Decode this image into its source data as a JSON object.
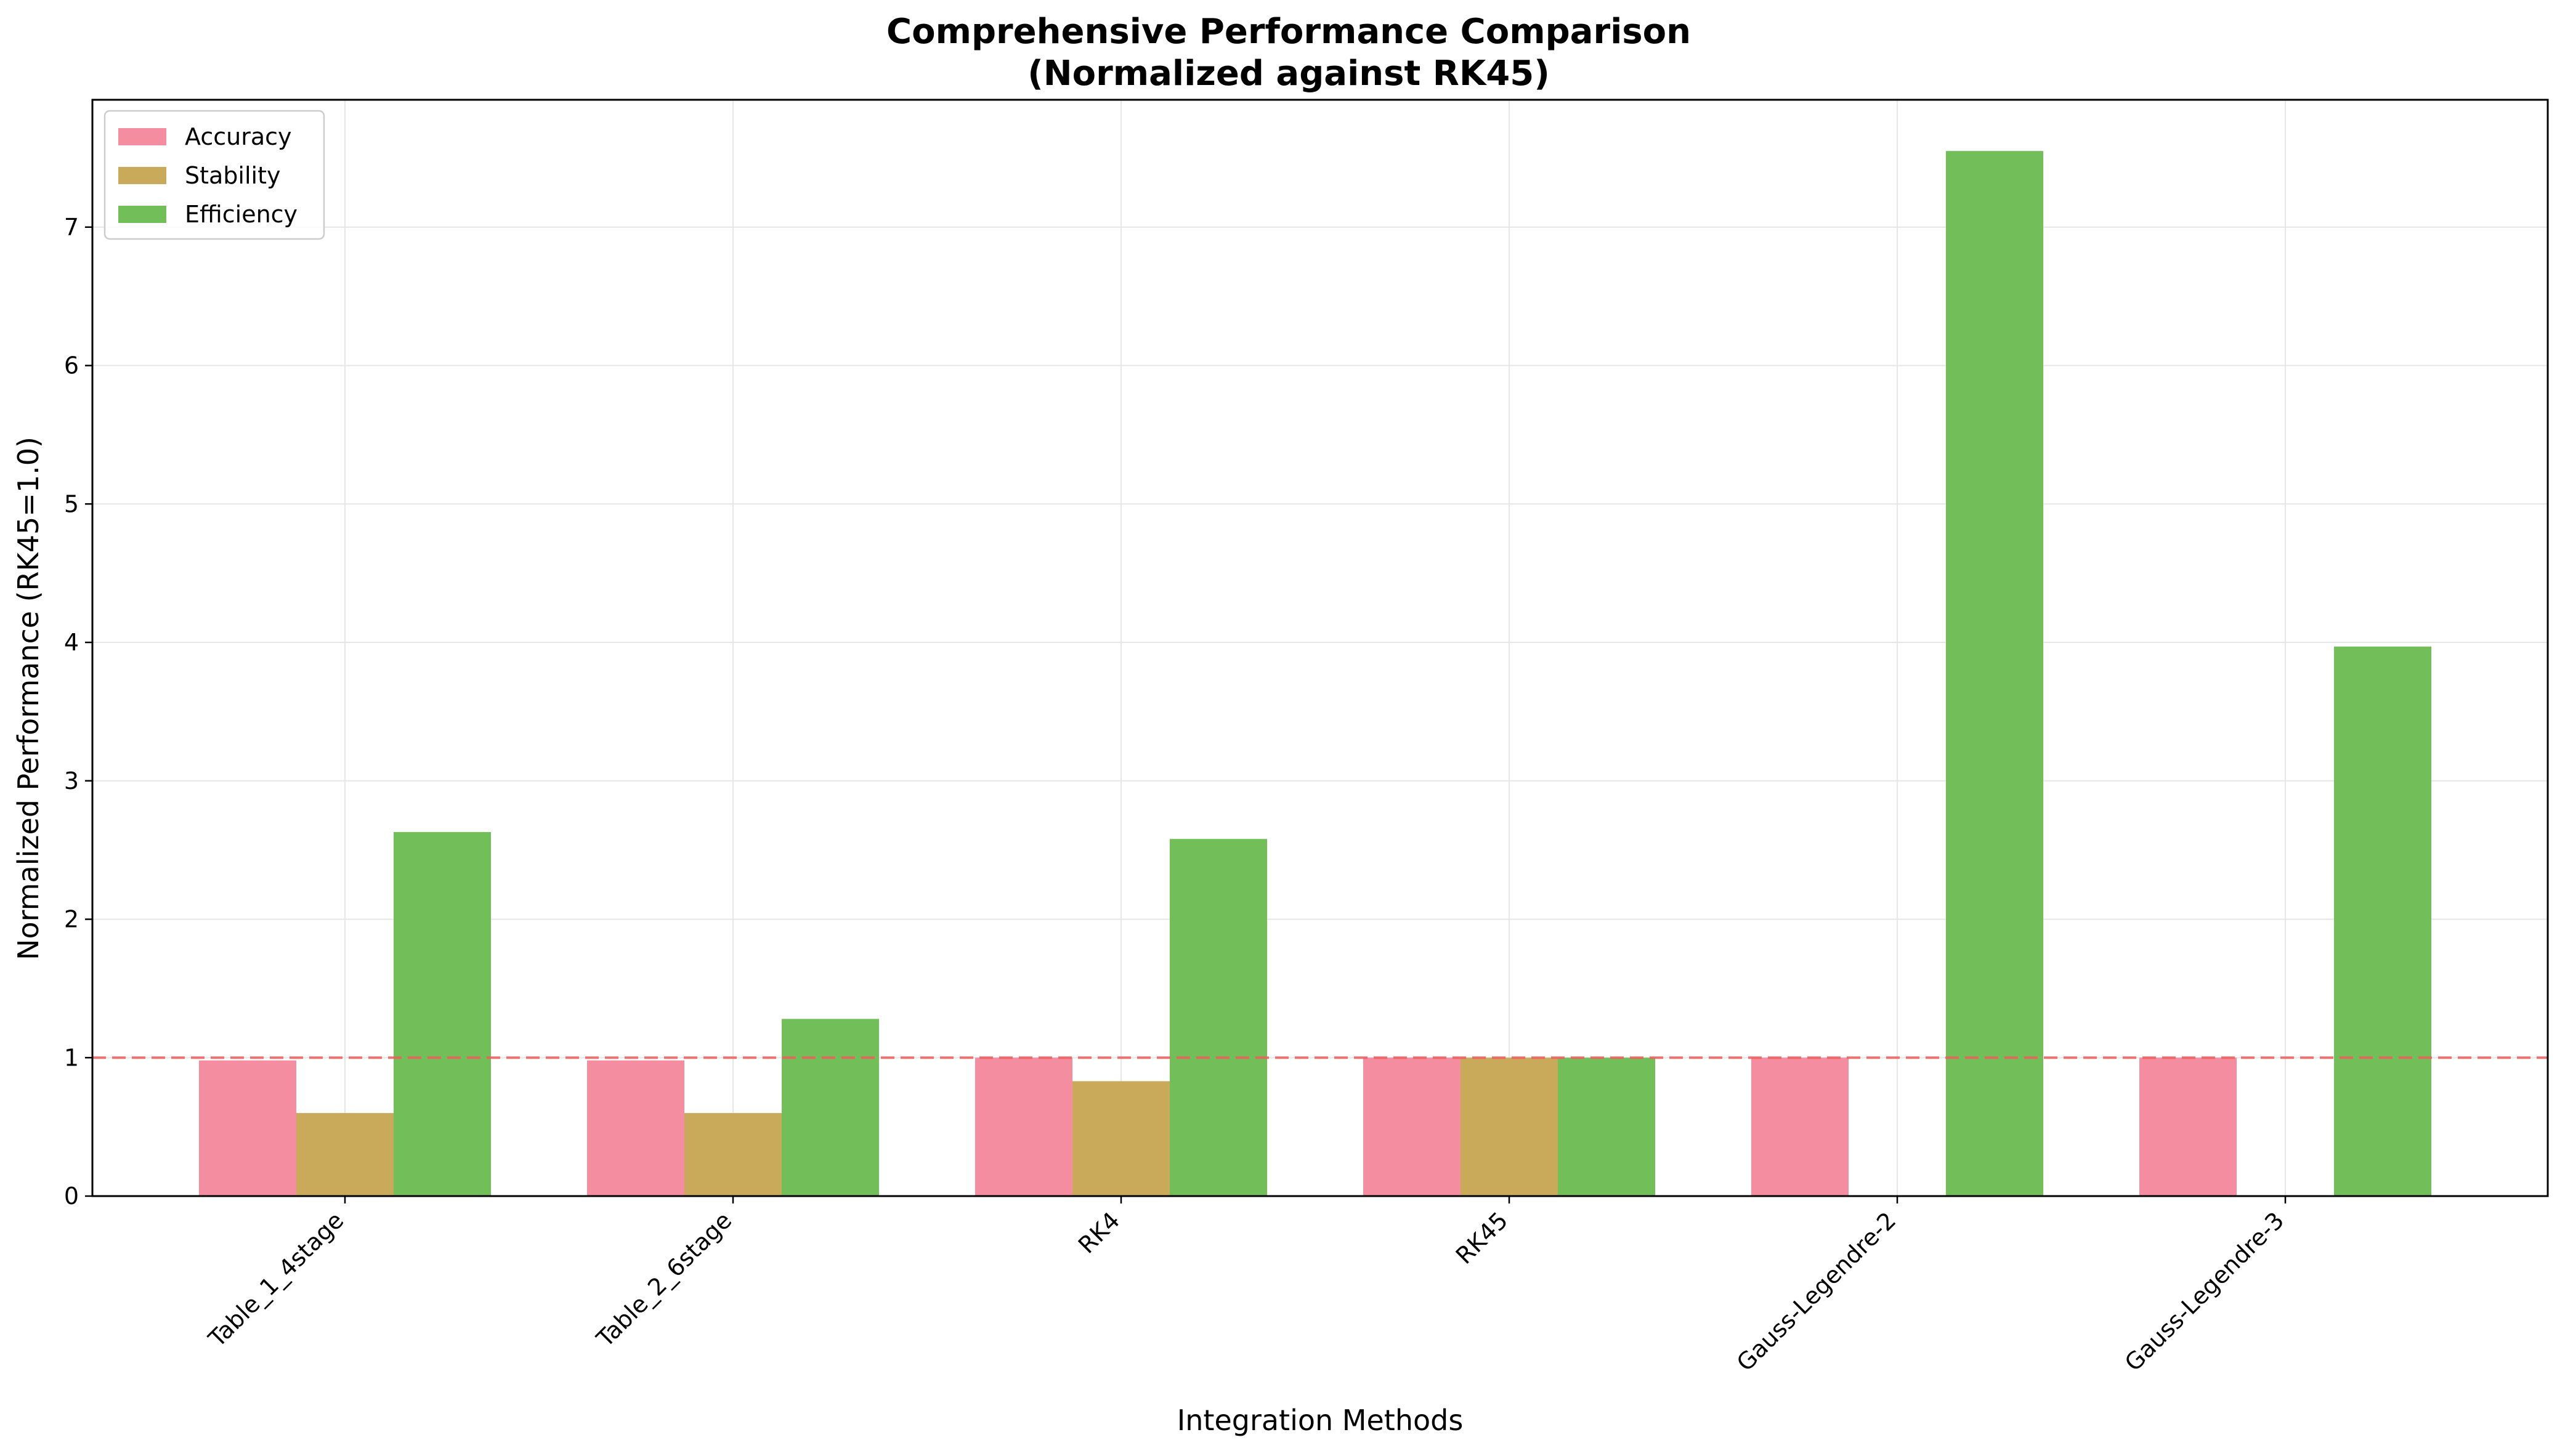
{
  "colors": {
    "accuracy": "#f48da0",
    "stability": "#c8aa5a",
    "efficiency": "#72bf5a",
    "reference_line": "#f05a5a",
    "grid": "#e6e6e6",
    "axis": "#000000"
  },
  "chart_data": {
    "type": "bar",
    "title": "Comprehensive Performance Comparison",
    "subtitle": "(Normalized against RK45)",
    "xlabel": "Integration Methods",
    "ylabel": "Normalized Performance (RK45=1.0)",
    "categories": [
      "Table_1_4stage",
      "Table_2_6stage",
      "RK4",
      "RK45",
      "Gauss-Legendre-2",
      "Gauss-Legendre-3"
    ],
    "series": [
      {
        "name": "Accuracy",
        "color": "#f48da0",
        "values": [
          0.98,
          0.98,
          1.0,
          1.0,
          1.0,
          1.0
        ]
      },
      {
        "name": "Stability",
        "color": "#c8aa5a",
        "values": [
          0.6,
          0.6,
          0.83,
          1.0,
          0.0,
          0.0
        ]
      },
      {
        "name": "Efficiency",
        "color": "#72bf5a",
        "values": [
          2.63,
          1.28,
          2.58,
          1.0,
          7.55,
          3.97
        ]
      }
    ],
    "ylim": [
      0,
      7.92
    ],
    "yticks": [
      0,
      1,
      2,
      3,
      4,
      5,
      6,
      7
    ],
    "reference_line": {
      "y": 1.0,
      "style": "dashed"
    },
    "grid": true,
    "legend_position": "top-left"
  }
}
